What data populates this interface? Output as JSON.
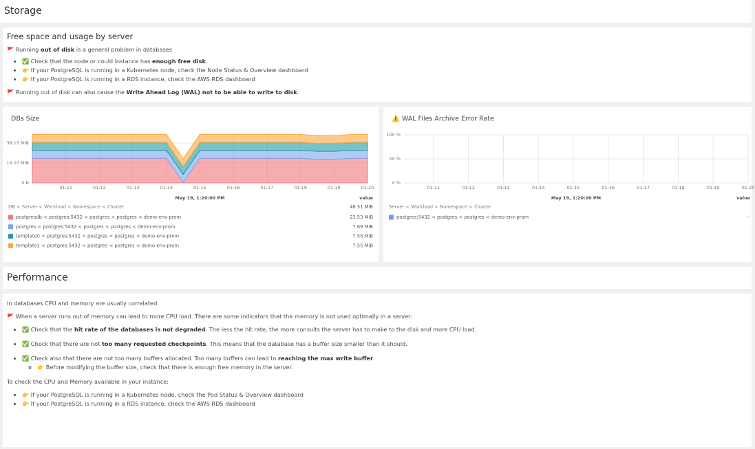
{
  "storage": {
    "title": "Storage"
  },
  "free_space": {
    "title": "Free space and usage by server",
    "body": [
      {
        "type": "p",
        "parts": [
          "🚩 Running ",
          {
            "text": "out of disk",
            "bold": true
          },
          " is a general problem in databases"
        ]
      },
      {
        "type": "list",
        "items": [
          {
            "parts": [
              "✅ Check that the node or could instance has ",
              {
                "text": "enough free disk",
                "bold": true
              },
              "."
            ]
          },
          {
            "parts": [
              "👉 If your PostgreSQL is running in a Kubernetes node, check the Node Status & Overview dashboard"
            ]
          },
          {
            "parts": [
              "👉 If your PostgreSQL is running in a RDS instance, check the AWS RDS dashboard"
            ]
          }
        ]
      },
      {
        "type": "p",
        "parts": [
          "🚩 Running out of disk can also cause the ",
          {
            "text": "Write Ahead Log (WAL) not to be able to write to disk",
            "bold": true
          },
          "."
        ]
      }
    ]
  },
  "chart_data": [
    {
      "type": "area",
      "stacked": true,
      "title": "DBs Size",
      "categories": [
        null,
        null,
        "01:11",
        null,
        "01:12",
        null,
        "01:13",
        null,
        "01:14",
        null,
        "01:15",
        null,
        "01:16",
        null,
        "01:17",
        null,
        "01:18",
        null,
        "01:19",
        null,
        "01:20"
      ],
      "ylim": [
        0,
        48
      ],
      "yticks": [
        {
          "value": 0,
          "label": "0 B"
        },
        {
          "value": 19.07,
          "label": "19.07 MiB"
        },
        {
          "value": 38.15,
          "label": "38.15 MiB"
        }
      ],
      "grid": true,
      "xlabel": "May 19, 1:20:00 PM",
      "legend_header": "DB < Server < Workload < Namespace < Cluster",
      "legend_value_header": "value",
      "legend_total": "46.31 MiB",
      "series": [
        {
          "name": "postgresdb < postgres:5432 < postgres < postgres < demo-env-prom",
          "color": "#f2777a",
          "legend_value": "23.53 MiB",
          "values": [
            23.53,
            23.53,
            23.53,
            23.53,
            23.53,
            23.53,
            23.53,
            23.53,
            23.53,
            0.4,
            23.53,
            23.53,
            23.53,
            23.53,
            23.53,
            23.53,
            23.53,
            22.5,
            22.5,
            23.53,
            23.53
          ]
        },
        {
          "name": "postgres < postgres:5432 < postgres < postgres < demo-env-prom",
          "color": "#7aa7ef",
          "legend_value": "7.69 MiB",
          "values": [
            7.69,
            7.69,
            7.69,
            7.69,
            7.69,
            7.69,
            7.69,
            7.69,
            7.69,
            7.69,
            7.69,
            7.69,
            7.69,
            7.69,
            7.69,
            7.69,
            7.69,
            7.69,
            7.69,
            7.69,
            7.69
          ]
        },
        {
          "name": "template0 < postgres:5432 < postgres < postgres < demo-env-prom",
          "color": "#1f9aa6",
          "legend_value": "7.55 MiB",
          "values": [
            7.55,
            7.55,
            7.55,
            7.55,
            7.55,
            7.55,
            7.55,
            7.55,
            7.55,
            7.55,
            7.55,
            7.55,
            7.55,
            7.55,
            7.55,
            7.55,
            7.55,
            7.55,
            7.55,
            7.55,
            7.55
          ]
        },
        {
          "name": "template1 < postgres:5432 < postgres < postgres < demo-env-prom",
          "color": "#ffa53c",
          "legend_value": "7.55 MiB",
          "values": [
            7.55,
            7.55,
            7.55,
            7.55,
            7.55,
            7.55,
            7.55,
            7.55,
            7.55,
            7.55,
            7.55,
            7.55,
            7.55,
            7.55,
            7.55,
            7.55,
            7.55,
            7.55,
            7.55,
            7.55,
            7.55
          ]
        }
      ]
    },
    {
      "type": "line",
      "title": "⚠️ WAL Files Archive Error Rate",
      "categories": [
        "01:11",
        "01:12",
        "01:13",
        "01:14",
        "01:15",
        "01:16",
        "01:17",
        "01:18",
        "01:19",
        "01:20"
      ],
      "ylim": [
        0,
        100
      ],
      "yticks": [
        {
          "value": 0,
          "label": "0 %"
        },
        {
          "value": 50,
          "label": "50 %"
        },
        {
          "value": 100,
          "label": "100 %"
        }
      ],
      "grid": true,
      "xlabel": "May 19, 1:20:00 PM",
      "legend_header": "Server < Workload < Namespace < Cluster",
      "legend_value_header": "value",
      "series": [
        {
          "name": "postgres:5432 < postgres < postgres < demo-env-prom",
          "color": "#6e9ff0",
          "legend_value": "--",
          "values": [
            null,
            null,
            null,
            null,
            null,
            null,
            null,
            null,
            null,
            null
          ]
        }
      ]
    }
  ],
  "performance": {
    "title": "Performance",
    "body": [
      {
        "type": "p",
        "parts": [
          "In databases CPU and memory are usually correlated."
        ]
      },
      {
        "type": "p",
        "parts": [
          "🚩 When a server runs out of memory can lead to more CPU load. There are some indicators that the memory is not used optimally in a server:"
        ]
      },
      {
        "type": "list",
        "items": [
          {
            "parts": [
              "✅ Check that the ",
              {
                "text": "hit rate of the databases is not degraded",
                "bold": true
              },
              ". The less the hit rate, the more consults the server has to make to the disk and more CPU load."
            ]
          },
          {
            "parts": [
              "✅ Check that there are not ",
              {
                "text": "too many requested checkpoints",
                "bold": true
              },
              ". This means that the database has a buffer size smaller than it should."
            ]
          },
          {
            "parts": [
              "✅ Check also that there are not too many buffers allocated. Too many buffers can lead to ",
              {
                "text": "reaching the max write buffer",
                "bold": true
              },
              "."
            ],
            "items": [
              {
                "parts": [
                  "👉 Before modifying the buffer size, check that there is enough free memory in the server."
                ]
              }
            ]
          }
        ]
      },
      {
        "type": "p",
        "parts": [
          "To check the CPU and Memory available in your instance:"
        ]
      },
      {
        "type": "list",
        "items": [
          {
            "parts": [
              "👉 If your PostgreSQL is running in a Kubernetes node, check the Pod Status & Overview dashboard"
            ]
          },
          {
            "parts": [
              "👉 If your PostgreSQL is running in a RDS instance, check the AWS RDS dashboard"
            ]
          }
        ]
      }
    ]
  }
}
